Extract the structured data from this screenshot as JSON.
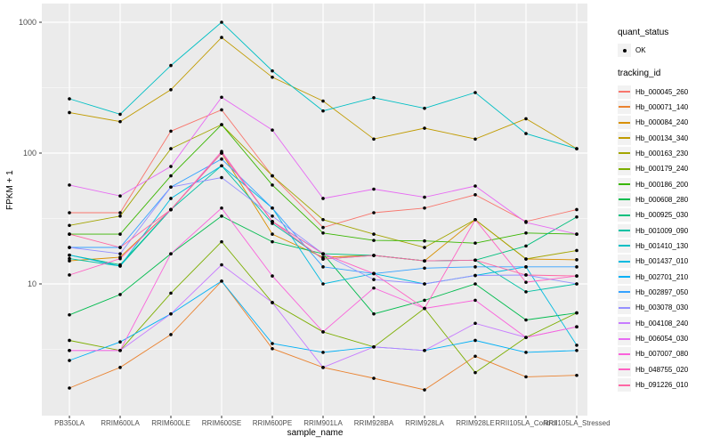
{
  "chart_data": {
    "type": "line",
    "xlabel": "sample_name",
    "ylabel": "FPKM + 1",
    "y_scale": "log10",
    "y_ticks": [
      10,
      100,
      1000
    ],
    "y_minor_ticks": [
      3.162,
      31.62,
      316.2
    ],
    "ylim": [
      1,
      1440
    ],
    "grid": true,
    "panel_bg": "#EBEBEB",
    "grid_color": "#FFFFFF",
    "tick_label_color": "#4D4D4D",
    "point_color": "#000000",
    "legend_position": "right",
    "categories": [
      "PB350LA",
      "RRIM600LA",
      "RRIM600LE",
      "RRIM600SE",
      "RRIM600PE",
      "RRIM901LA",
      "RRIM928BA",
      "RRIM928LA",
      "RRIM928LE",
      "RRII105LA_Control",
      "RRII105LA_Stressed"
    ],
    "quant_status": {
      "title": "quant_status",
      "items": [
        {
          "label": "OK",
          "symbol": "point"
        }
      ]
    },
    "tracking_title": "tracking_id",
    "series": [
      {
        "name": "Hb_000045_260",
        "color": "#F8766D",
        "values": [
          35,
          35,
          147,
          214,
          67,
          27,
          35,
          38,
          48,
          30,
          37
        ]
      },
      {
        "name": "Hb_000071_140",
        "color": "#EA8331",
        "values": [
          1.6,
          2.3,
          4.1,
          10.5,
          3.2,
          2.3,
          1.9,
          1.55,
          2.8,
          1.95,
          2.0
        ]
      },
      {
        "name": "Hb_000084_240",
        "color": "#D89000",
        "values": [
          15,
          16,
          37,
          100,
          24,
          16,
          16.5,
          15,
          31,
          15.5,
          15.3
        ]
      },
      {
        "name": "Hb_000134_340",
        "color": "#C09B00",
        "values": [
          204,
          174,
          305,
          765,
          380,
          250,
          128,
          155,
          128,
          183,
          108
        ]
      },
      {
        "name": "Hb_000163_230",
        "color": "#A3A500",
        "values": [
          28,
          33,
          108,
          165,
          67,
          31,
          24,
          19,
          31,
          15.5,
          18
        ]
      },
      {
        "name": "Hb_000179_240",
        "color": "#7CAE00",
        "values": [
          3.7,
          3.1,
          8.5,
          21,
          7.2,
          4.3,
          3.3,
          6.5,
          2.1,
          3.9,
          6
        ]
      },
      {
        "name": "Hb_000186_200",
        "color": "#39B600",
        "values": [
          24,
          24,
          67,
          165,
          57,
          24.5,
          21.5,
          21.3,
          20.5,
          24.5,
          24
        ]
      },
      {
        "name": "Hb_000608_280",
        "color": "#00BB4E",
        "values": [
          5.8,
          8.3,
          17,
          33,
          21,
          17,
          5.9,
          7.5,
          10,
          5.3,
          6
        ]
      },
      {
        "name": "Hb_000925_030",
        "color": "#00BF7D",
        "values": [
          16.6,
          14,
          37,
          100,
          30,
          17,
          16.5,
          15,
          15.2,
          19.5,
          32.5
        ]
      },
      {
        "name": "Hb_001009_090",
        "color": "#00C1A3",
        "values": [
          15.6,
          13.7,
          37,
          80,
          29,
          15.5,
          16.5,
          15,
          15.2,
          8.7,
          10
        ]
      },
      {
        "name": "Hb_001410_130",
        "color": "#00BFC4",
        "values": [
          260,
          198,
          467,
          1000,
          425,
          210,
          265,
          220,
          290,
          141,
          108
        ]
      },
      {
        "name": "Hb_001437_010",
        "color": "#00BAE0",
        "values": [
          16.6,
          13.7,
          45,
          80,
          38,
          10,
          12,
          10,
          11.6,
          13.5,
          3.4
        ]
      },
      {
        "name": "Hb_002701_210",
        "color": "#00B0F6",
        "values": [
          2.6,
          3.6,
          5.9,
          10.5,
          3.5,
          3.0,
          3.3,
          3.1,
          3.7,
          3.0,
          3.1
        ]
      },
      {
        "name": "Hb_002897_050",
        "color": "#35A2FF",
        "values": [
          19,
          19,
          55,
          90,
          38,
          13.5,
          12,
          13.2,
          13.5,
          13.5,
          13.5
        ]
      },
      {
        "name": "Hb_003078_030",
        "color": "#9590FF",
        "values": [
          19,
          17,
          55,
          65,
          33,
          17,
          10.8,
          10,
          11.6,
          11.7,
          10
        ]
      },
      {
        "name": "Hb_004108_240",
        "color": "#C77CFF",
        "values": [
          3.1,
          3.1,
          5.9,
          14,
          7.2,
          2.3,
          3.3,
          3.1,
          5.0,
          3.9,
          4.7
        ]
      },
      {
        "name": "Hb_006054_030",
        "color": "#E76BF3",
        "values": [
          57,
          47,
          79,
          267,
          150,
          45,
          53,
          46,
          56,
          29.5,
          24
        ]
      },
      {
        "name": "Hb_007007_080",
        "color": "#FA62DB",
        "values": [
          3.1,
          3.1,
          17,
          38,
          11.5,
          4.3,
          9.3,
          6.5,
          7.5,
          3.9,
          4.7
        ]
      },
      {
        "name": "Hb_048755_020",
        "color": "#FF61C3",
        "values": [
          11.7,
          15.6,
          37,
          103,
          30,
          17,
          12,
          6.5,
          31,
          10.3,
          11.5
        ]
      },
      {
        "name": "Hb_091226_010",
        "color": "#FF67A4",
        "values": [
          24,
          19,
          37,
          100,
          30,
          15.5,
          16.5,
          15,
          15.2,
          11.7,
          11.5
        ]
      }
    ]
  }
}
